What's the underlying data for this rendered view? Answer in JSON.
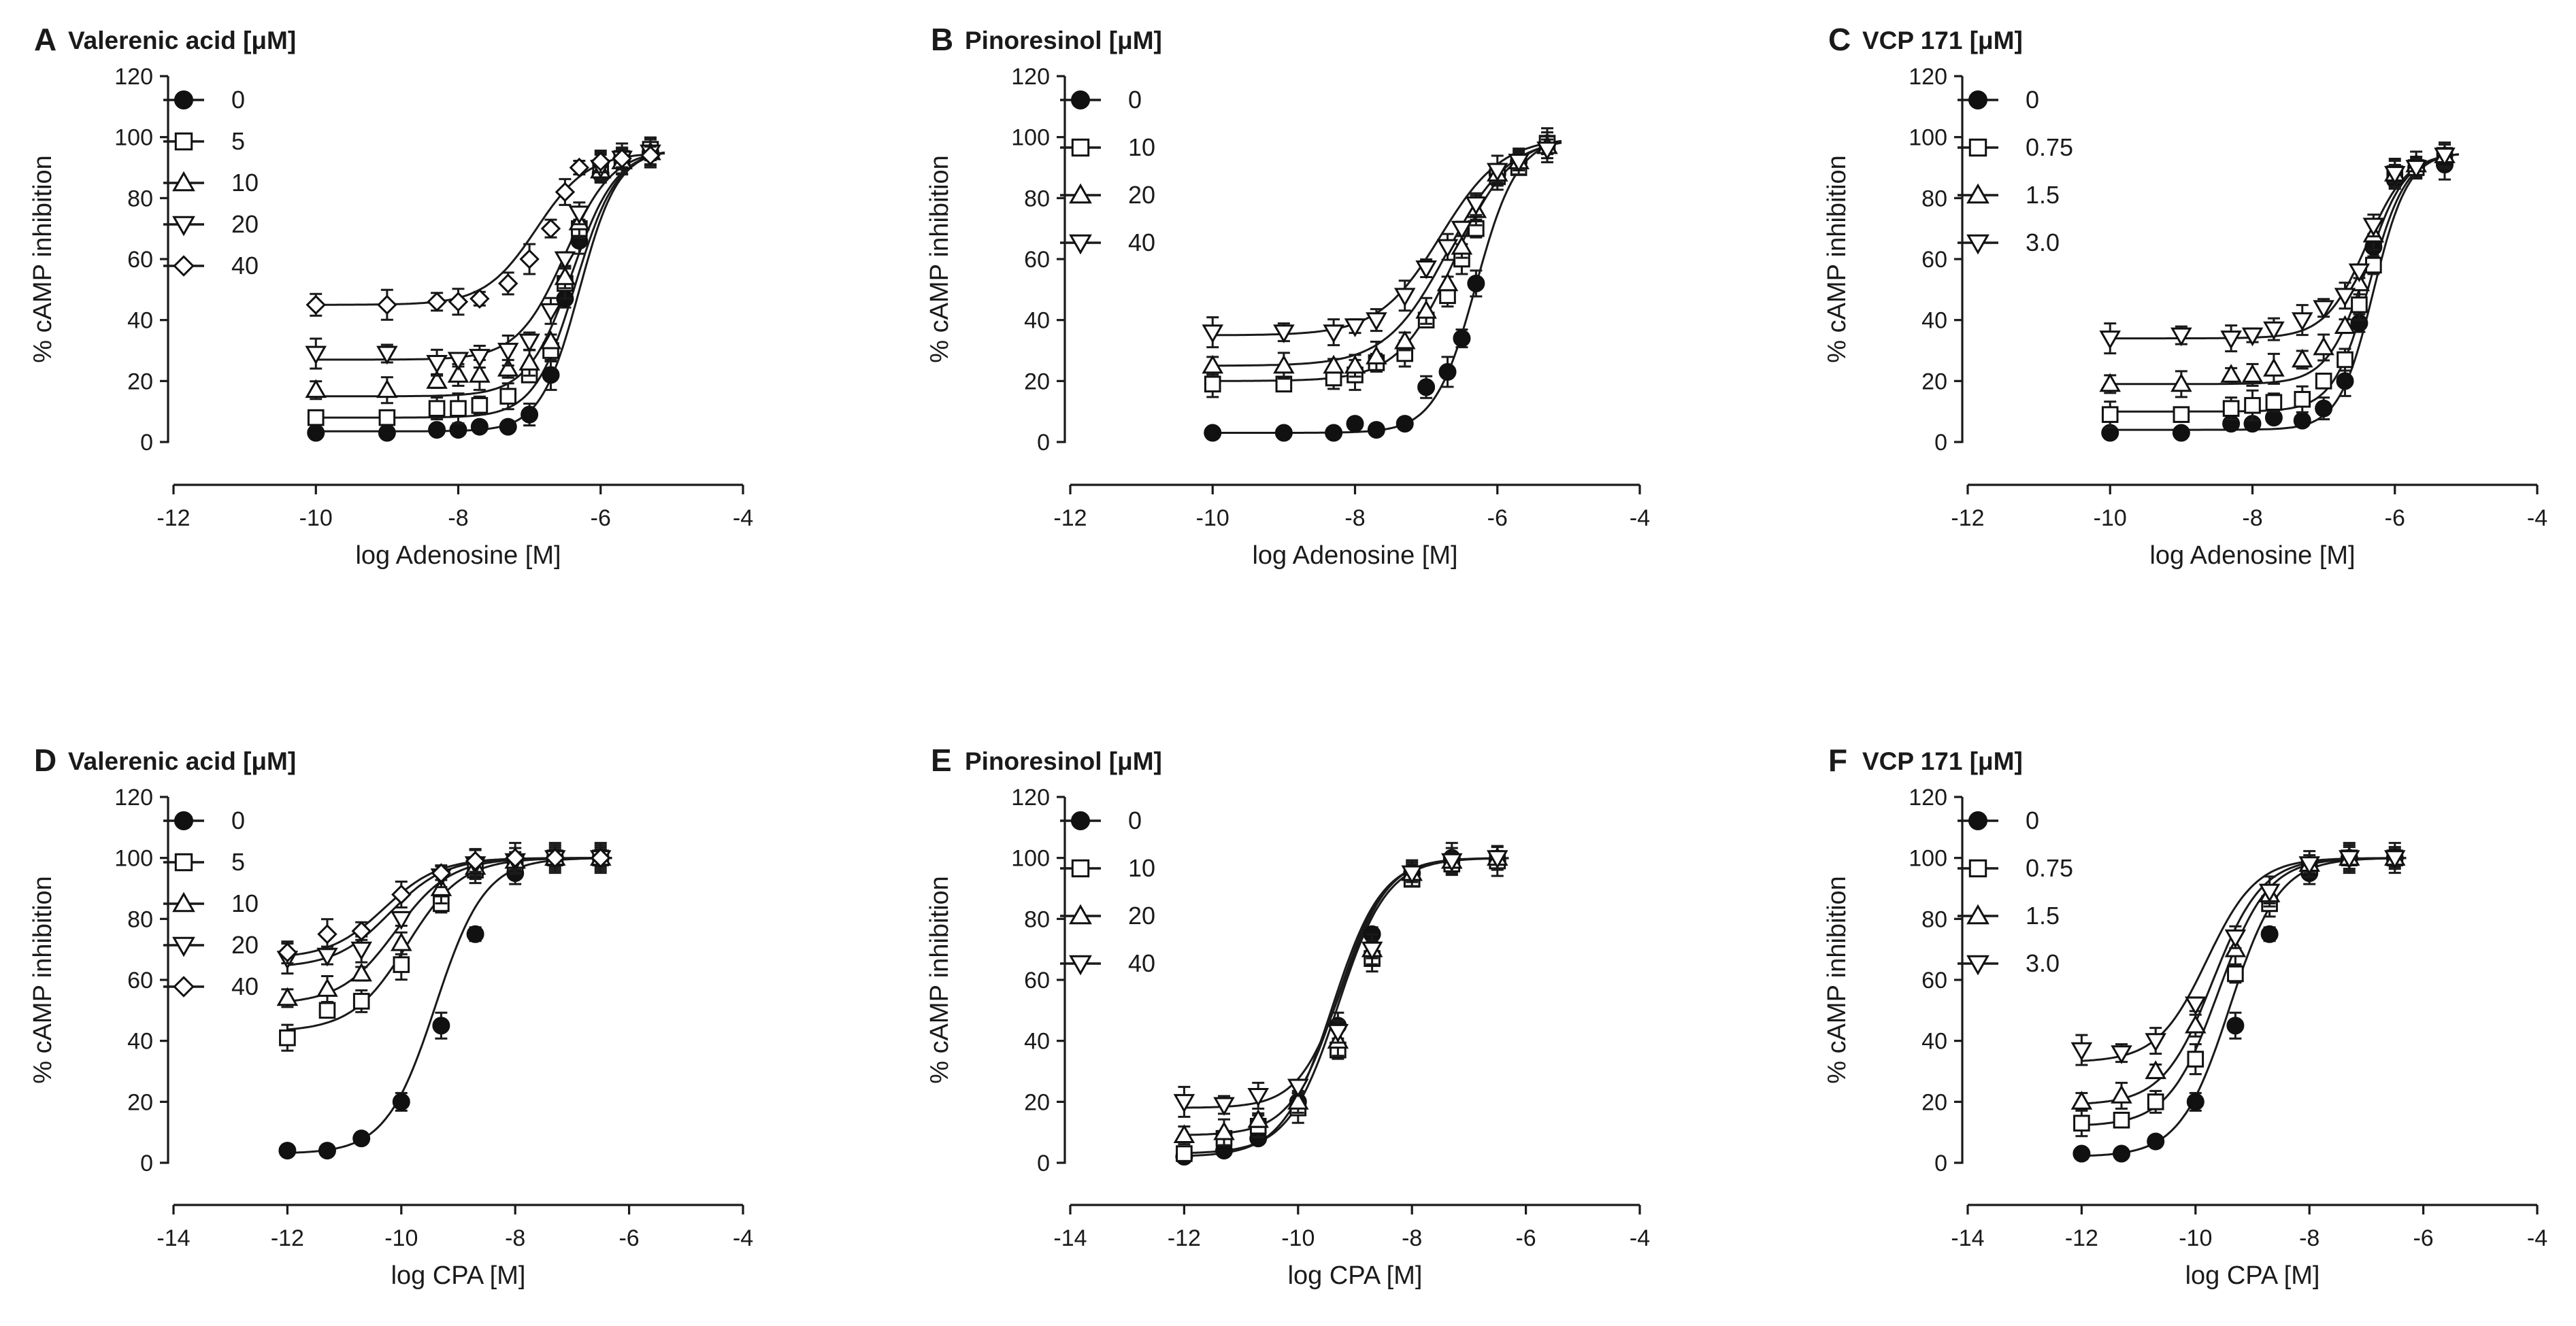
{
  "chart_data": [
    {
      "panel": "A",
      "type": "scatter",
      "title": "Valerenic acid [μM]",
      "xlabel": "log Adenosine [M]",
      "ylabel": "% cAMP inhibition",
      "xlim": [
        -12,
        -4
      ],
      "ylim": [
        0,
        120
      ],
      "xticks": [
        -12,
        -10,
        -8,
        -6,
        -4
      ],
      "yticks": [
        0,
        20,
        40,
        60,
        80,
        100,
        120
      ],
      "x": [
        -10,
        -9,
        -8.3,
        -8,
        -7.7,
        -7.3,
        -7,
        -6.7,
        -6.5,
        -6.3,
        -6,
        -5.7,
        -5.3
      ],
      "legend_position": "top-left",
      "series": [
        {
          "name": "0",
          "marker": "filled-circle",
          "values": [
            3,
            3,
            4,
            4,
            5,
            5,
            9,
            22,
            47,
            66,
            88,
            93,
            95
          ],
          "bottom": 3.5,
          "top": 96,
          "logEC50": -6.3,
          "hill": 1.6
        },
        {
          "name": "5",
          "marker": "open-square",
          "values": [
            8,
            8,
            11,
            11,
            12,
            15,
            22,
            30,
            52,
            70,
            90,
            93,
            96
          ],
          "bottom": 8,
          "top": 96,
          "logEC50": -6.35,
          "hill": 1.5
        },
        {
          "name": "10",
          "marker": "open-triangle-up",
          "values": [
            17,
            17,
            20,
            22,
            22,
            24,
            26,
            33,
            54,
            72,
            89,
            92,
            95
          ],
          "bottom": 15,
          "top": 96,
          "logEC50": -6.4,
          "hill": 1.4
        },
        {
          "name": "20",
          "marker": "open-triangle-down",
          "values": [
            29,
            29,
            26,
            27,
            28,
            30,
            33,
            43,
            60,
            75,
            90,
            93,
            95
          ],
          "bottom": 27,
          "top": 96,
          "logEC50": -6.5,
          "hill": 1.3
        },
        {
          "name": "40",
          "marker": "open-diamond",
          "values": [
            45,
            45,
            46,
            46,
            47,
            52,
            60,
            70,
            82,
            90,
            92,
            93,
            94
          ],
          "bottom": 45,
          "top": 95,
          "logEC50": -6.9,
          "hill": 1.2
        }
      ]
    },
    {
      "panel": "B",
      "type": "scatter",
      "title": "Pinoresinol [μM]",
      "xlabel": "log Adenosine [M]",
      "ylabel": "% cAMP inhibition",
      "xlim": [
        -12,
        -4
      ],
      "ylim": [
        0,
        120
      ],
      "xticks": [
        -12,
        -10,
        -8,
        -6,
        -4
      ],
      "yticks": [
        0,
        20,
        40,
        60,
        80,
        100,
        120
      ],
      "x": [
        -10,
        -9,
        -8.3,
        -8,
        -7.7,
        -7.3,
        -7,
        -6.7,
        -6.5,
        -6.3,
        -6,
        -5.7,
        -5.3
      ],
      "legend_position": "top-left",
      "series": [
        {
          "name": "0",
          "marker": "filled-circle",
          "values": [
            3,
            3,
            3,
            6,
            4,
            6,
            18,
            23,
            34,
            52,
            88,
            92,
            98
          ],
          "bottom": 3,
          "top": 100,
          "logEC50": -6.3,
          "hill": 1.5
        },
        {
          "name": "10",
          "marker": "open-square",
          "values": [
            19,
            19,
            21,
            22,
            26,
            29,
            40,
            48,
            60,
            70,
            87,
            90,
            98
          ],
          "bottom": 20,
          "top": 100,
          "logEC50": -6.6,
          "hill": 1.1
        },
        {
          "name": "20",
          "marker": "open-triangle-up",
          "values": [
            25,
            25,
            25,
            25,
            28,
            33,
            43,
            52,
            64,
            76,
            88,
            92,
            97
          ],
          "bottom": 25,
          "top": 100,
          "logEC50": -6.7,
          "hill": 1.0
        },
        {
          "name": "40",
          "marker": "open-triangle-down",
          "values": [
            36,
            36,
            36,
            38,
            40,
            48,
            57,
            64,
            70,
            78,
            89,
            92,
            96
          ],
          "bottom": 35,
          "top": 100,
          "logEC50": -6.8,
          "hill": 1.0
        }
      ]
    },
    {
      "panel": "C",
      "type": "scatter",
      "title": "VCP 171 [μM]",
      "xlabel": "log Adenosine [M]",
      "ylabel": "% cAMP inhibition",
      "xlim": [
        -12,
        -4
      ],
      "ylim": [
        0,
        120
      ],
      "xticks": [
        -12,
        -10,
        -8,
        -6,
        -4
      ],
      "yticks": [
        0,
        20,
        40,
        60,
        80,
        100,
        120
      ],
      "x": [
        -10,
        -9,
        -8.3,
        -8,
        -7.7,
        -7.3,
        -7,
        -6.7,
        -6.5,
        -6.3,
        -6,
        -5.7,
        -5.3
      ],
      "legend_position": "top-left",
      "series": [
        {
          "name": "0",
          "marker": "filled-circle",
          "values": [
            3,
            3,
            6,
            6,
            8,
            7,
            11,
            20,
            39,
            64,
            86,
            90,
            91
          ],
          "bottom": 4,
          "top": 95,
          "logEC50": -6.3,
          "hill": 1.8
        },
        {
          "name": "0.75",
          "marker": "open-square",
          "values": [
            9,
            9,
            11,
            12,
            13,
            14,
            20,
            27,
            45,
            58,
            88,
            90,
            94
          ],
          "bottom": 10,
          "top": 95,
          "logEC50": -6.35,
          "hill": 1.7
        },
        {
          "name": "1.5",
          "marker": "open-triangle-up",
          "values": [
            19,
            19,
            22,
            22,
            24,
            27,
            31,
            38,
            52,
            68,
            88,
            91,
            94
          ],
          "bottom": 19,
          "top": 95,
          "logEC50": -6.4,
          "hill": 1.6
        },
        {
          "name": "3.0",
          "marker": "open-triangle-down",
          "values": [
            34,
            35,
            34,
            35,
            37,
            40,
            44,
            48,
            56,
            71,
            88,
            90,
            94
          ],
          "bottom": 34,
          "top": 95,
          "logEC50": -6.4,
          "hill": 1.5
        }
      ]
    },
    {
      "panel": "D",
      "type": "scatter",
      "title": "Valerenic acid [μM]",
      "xlabel": "log CPA [M]",
      "ylabel": "% cAMP inhibition",
      "xlim": [
        -14,
        -4
      ],
      "ylim": [
        0,
        120
      ],
      "xticks": [
        -14,
        -12,
        -10,
        -8,
        -6,
        -4
      ],
      "yticks": [
        0,
        20,
        40,
        60,
        80,
        100,
        120
      ],
      "x": [
        -12,
        -11.3,
        -10.7,
        -10,
        -9.3,
        -8.7,
        -8,
        -7.3,
        -6.5
      ],
      "legend_position": "top-left",
      "series": [
        {
          "name": "0",
          "marker": "filled-circle",
          "values": [
            4,
            4,
            8,
            20,
            45,
            75,
            95,
            100,
            100
          ],
          "bottom": 3,
          "top": 100,
          "logEC50": -9.4,
          "hill": 1.0
        },
        {
          "name": "5",
          "marker": "open-square",
          "values": [
            41,
            50,
            53,
            65,
            85,
            96,
            98,
            100,
            100
          ],
          "bottom": 43,
          "top": 100,
          "logEC50": -9.9,
          "hill": 0.9
        },
        {
          "name": "10",
          "marker": "open-triangle-up",
          "values": [
            54,
            57,
            62,
            72,
            90,
            97,
            99,
            100,
            100
          ],
          "bottom": 52,
          "top": 100,
          "logEC50": -10.1,
          "hill": 0.9
        },
        {
          "name": "20",
          "marker": "open-triangle-down",
          "values": [
            67,
            68,
            70,
            80,
            94,
            98,
            99,
            100,
            100
          ],
          "bottom": 64,
          "top": 100,
          "logEC50": -10.2,
          "hill": 0.9
        },
        {
          "name": "40",
          "marker": "open-diamond",
          "values": [
            69,
            75,
            76,
            88,
            95,
            99,
            100,
            100,
            100
          ],
          "bottom": 67,
          "top": 100,
          "logEC50": -10.3,
          "hill": 0.9
        }
      ]
    },
    {
      "panel": "E",
      "type": "scatter",
      "title": "Pinoresinol [μM]",
      "xlabel": "log CPA [M]",
      "ylabel": "% cAMP inhibition",
      "xlim": [
        -14,
        -4
      ],
      "ylim": [
        0,
        120
      ],
      "xticks": [
        -14,
        -12,
        -10,
        -8,
        -6,
        -4
      ],
      "yticks": [
        0,
        20,
        40,
        60,
        80,
        100,
        120
      ],
      "x": [
        -12,
        -11.3,
        -10.7,
        -10,
        -9.3,
        -8.7,
        -8,
        -7.3,
        -6.5
      ],
      "legend_position": "top-left",
      "series": [
        {
          "name": "0",
          "marker": "filled-circle",
          "values": [
            2,
            4,
            8,
            20,
            45,
            75,
            95,
            100,
            99
          ],
          "bottom": 2,
          "top": 100,
          "logEC50": -9.4,
          "hill": 1.0
        },
        {
          "name": "10",
          "marker": "open-square",
          "values": [
            3,
            8,
            12,
            18,
            37,
            67,
            93,
            98,
            99
          ],
          "bottom": 3,
          "top": 100,
          "logEC50": -9.3,
          "hill": 1.0
        },
        {
          "name": "20",
          "marker": "open-triangle-up",
          "values": [
            9,
            10,
            14,
            20,
            40,
            70,
            95,
            99,
            100
          ],
          "bottom": 9,
          "top": 100,
          "logEC50": -9.3,
          "hill": 1.05
        },
        {
          "name": "40",
          "marker": "open-triangle-down",
          "values": [
            20,
            19,
            22,
            25,
            43,
            70,
            95,
            99,
            100
          ],
          "bottom": 18,
          "top": 100,
          "logEC50": -9.2,
          "hill": 1.1
        }
      ]
    },
    {
      "panel": "F",
      "type": "scatter",
      "title": "VCP 171 [μM]",
      "xlabel": "log CPA [M]",
      "ylabel": "% cAMP inhibition",
      "xlim": [
        -14,
        -4
      ],
      "ylim": [
        0,
        120
      ],
      "xticks": [
        -14,
        -12,
        -10,
        -8,
        -6,
        -4
      ],
      "yticks": [
        0,
        20,
        40,
        60,
        80,
        100,
        120
      ],
      "x": [
        -12,
        -11.3,
        -10.7,
        -10,
        -9.3,
        -8.7,
        -8,
        -7.3,
        -6.5
      ],
      "legend_position": "top-left",
      "series": [
        {
          "name": "0",
          "marker": "filled-circle",
          "values": [
            3,
            3,
            7,
            20,
            45,
            75,
            95,
            100,
            100
          ],
          "bottom": 2,
          "top": 100,
          "logEC50": -9.4,
          "hill": 1.0
        },
        {
          "name": "0.75",
          "marker": "open-square",
          "values": [
            13,
            14,
            20,
            34,
            62,
            85,
            97,
            100,
            100
          ],
          "bottom": 12,
          "top": 100,
          "logEC50": -9.6,
          "hill": 1.0
        },
        {
          "name": "1.5",
          "marker": "open-triangle-up",
          "values": [
            20,
            22,
            30,
            45,
            70,
            88,
            98,
            100,
            100
          ],
          "bottom": 19,
          "top": 100,
          "logEC50": -9.7,
          "hill": 1.0
        },
        {
          "name": "3.0",
          "marker": "open-triangle-down",
          "values": [
            37,
            36,
            40,
            52,
            74,
            89,
            98,
            100,
            100
          ],
          "bottom": 33,
          "top": 100,
          "logEC50": -9.8,
          "hill": 1.0
        }
      ]
    }
  ]
}
